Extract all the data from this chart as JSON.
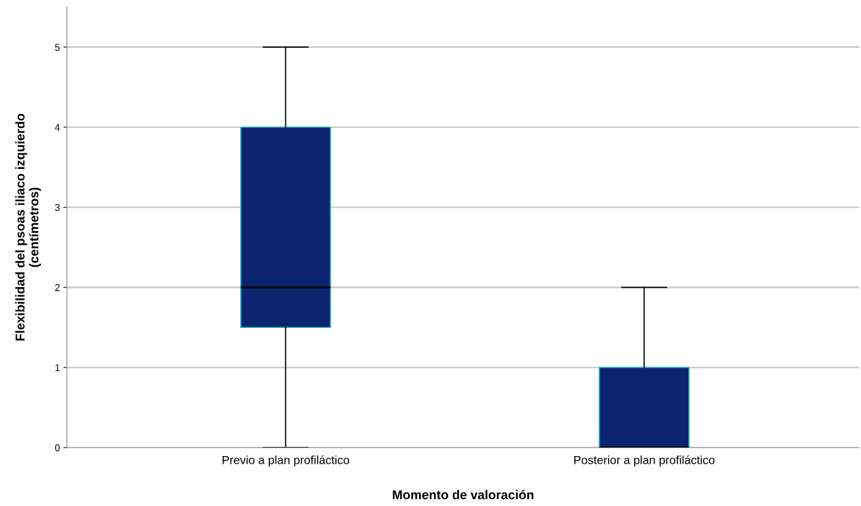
{
  "chart_data": {
    "type": "box",
    "xlabel": "Momento de valoración",
    "ylabel": "Flexibilidad del psoas iliaco izquierdo\n(centímetros)",
    "categories": [
      "Previo a plan profiláctico",
      "Posterior a plan profiláctico"
    ],
    "boxes": [
      {
        "low": 0,
        "q1": 1.5,
        "median": 2,
        "q3": 4,
        "high": 5
      },
      {
        "low": 0,
        "q1": 0,
        "median": 0,
        "q3": 1,
        "high": 2
      }
    ],
    "color": "#0b2470",
    "ylim": [
      0,
      5.5
    ],
    "yticks": [
      0,
      1,
      2,
      3,
      4,
      5
    ],
    "grid": "y",
    "legend": false
  }
}
